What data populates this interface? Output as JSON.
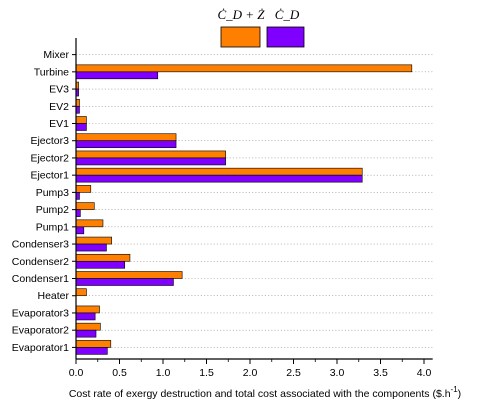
{
  "chart_data": {
    "type": "bar",
    "orientation": "horizontal",
    "categories": [
      "Mixer",
      "Turbine",
      "EV3",
      "EV2",
      "EV1",
      "Ejector3",
      "Ejector2",
      "Ejector1",
      "Pump3",
      "Pump2",
      "Pump1",
      "Condenser3",
      "Condenser2",
      "Condenser1",
      "Heater",
      "Evaporator3",
      "Evaporator2",
      "Evaporator1"
    ],
    "series": [
      {
        "name": "Ċ_D + Ż",
        "color": "#ff8000",
        "values": [
          0,
          3.86,
          0.03,
          0.04,
          0.12,
          1.15,
          1.72,
          3.29,
          0.17,
          0.21,
          0.31,
          0.41,
          0.62,
          1.22,
          0.12,
          0.27,
          0.28,
          0.4
        ]
      },
      {
        "name": "Ċ_D",
        "color": "#8000ff",
        "values": [
          0,
          0.94,
          0.03,
          0.04,
          0.12,
          1.15,
          1.72,
          3.29,
          0.04,
          0.05,
          0.09,
          0.35,
          0.56,
          1.12,
          0,
          0.22,
          0.23,
          0.36
        ]
      }
    ],
    "xlabel": "Cost rate of exergy destruction and total cost associated with the components ($.h",
    "xlabel_sup": "-1",
    "xlabel_end": ")",
    "xlim": [
      0,
      4.1
    ],
    "xticks": [
      "0.0",
      "0.5",
      "1.0",
      "1.5",
      "2.0",
      "2.5",
      "3.0",
      "3.5",
      "4.0"
    ],
    "grid": "horizontal dotted",
    "legend_position": "top"
  }
}
